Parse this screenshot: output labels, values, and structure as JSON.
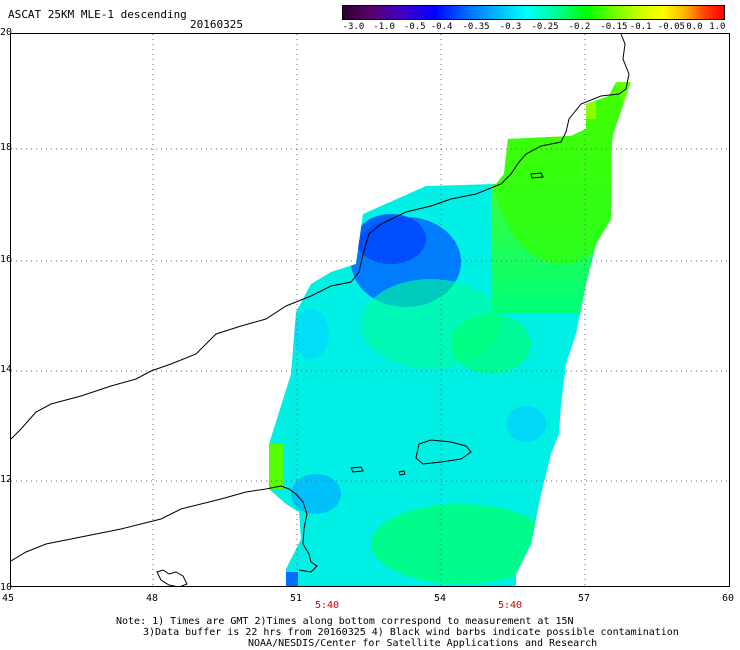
{
  "title": "ASCAT 25KM MLE-1 descending",
  "date": "20160325",
  "colorbar": {
    "ticks": [
      "-3.0",
      "-1.0",
      "-0.5",
      "-0.4",
      "-0.35",
      "-0.3",
      "-0.25",
      "-0.2",
      "-0.15",
      "-0.1",
      "-0.05",
      "0.0",
      "1.0"
    ]
  },
  "axes": {
    "lat_labels": [
      "20",
      "18",
      "16",
      "14",
      "12",
      "10"
    ],
    "lon_labels": [
      "45",
      "48",
      "51",
      "54",
      "57",
      "60"
    ]
  },
  "times": [
    "5:40",
    "5:40"
  ],
  "notes": [
    "Note: 1) Times are GMT 2)Times along bottom correspond to measurement at 15N",
    "3)Data buffer is 22 hrs from 20160325 4) Black wind barbs indicate possible contamination",
    "NOAA/NESDIS/Center for Satellite Applications and Research"
  ]
}
